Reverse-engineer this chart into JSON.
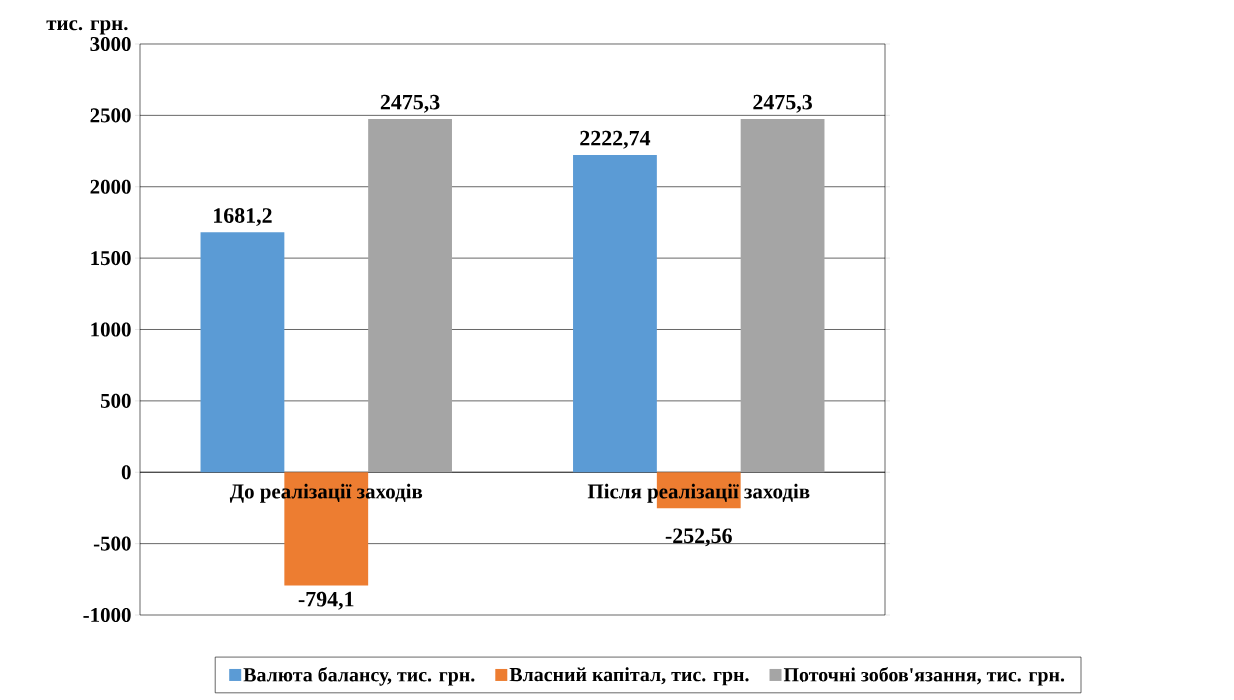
{
  "chart_data": {
    "type": "bar",
    "ylabel": "тис. грн.",
    "categories": [
      "До реалізації заходів",
      "Після реалізації заходів"
    ],
    "series": [
      {
        "name": "Валюта балансу, тис. грн.",
        "color": "#5b9bd5",
        "values": [
          1681.2,
          2222.74
        ],
        "value_labels": [
          "1681,2",
          "2222,74"
        ]
      },
      {
        "name": "Власний капітал, тис. грн.",
        "color": "#ed7d31",
        "values": [
          -794.1,
          -252.56
        ],
        "value_labels": [
          "-794,1",
          "-252,56"
        ]
      },
      {
        "name": "Поточні зобов'язання, тис. грн.",
        "color": "#a5a5a5",
        "values": [
          2475.3,
          2475.3
        ],
        "value_labels": [
          "2475,3",
          "2475,3"
        ]
      }
    ],
    "ylim": [
      -1000,
      3000
    ],
    "yticks": [
      -1000,
      -500,
      0,
      500,
      1000,
      1500,
      2000,
      2500,
      3000
    ],
    "grid": "y",
    "legend": "bottom"
  }
}
